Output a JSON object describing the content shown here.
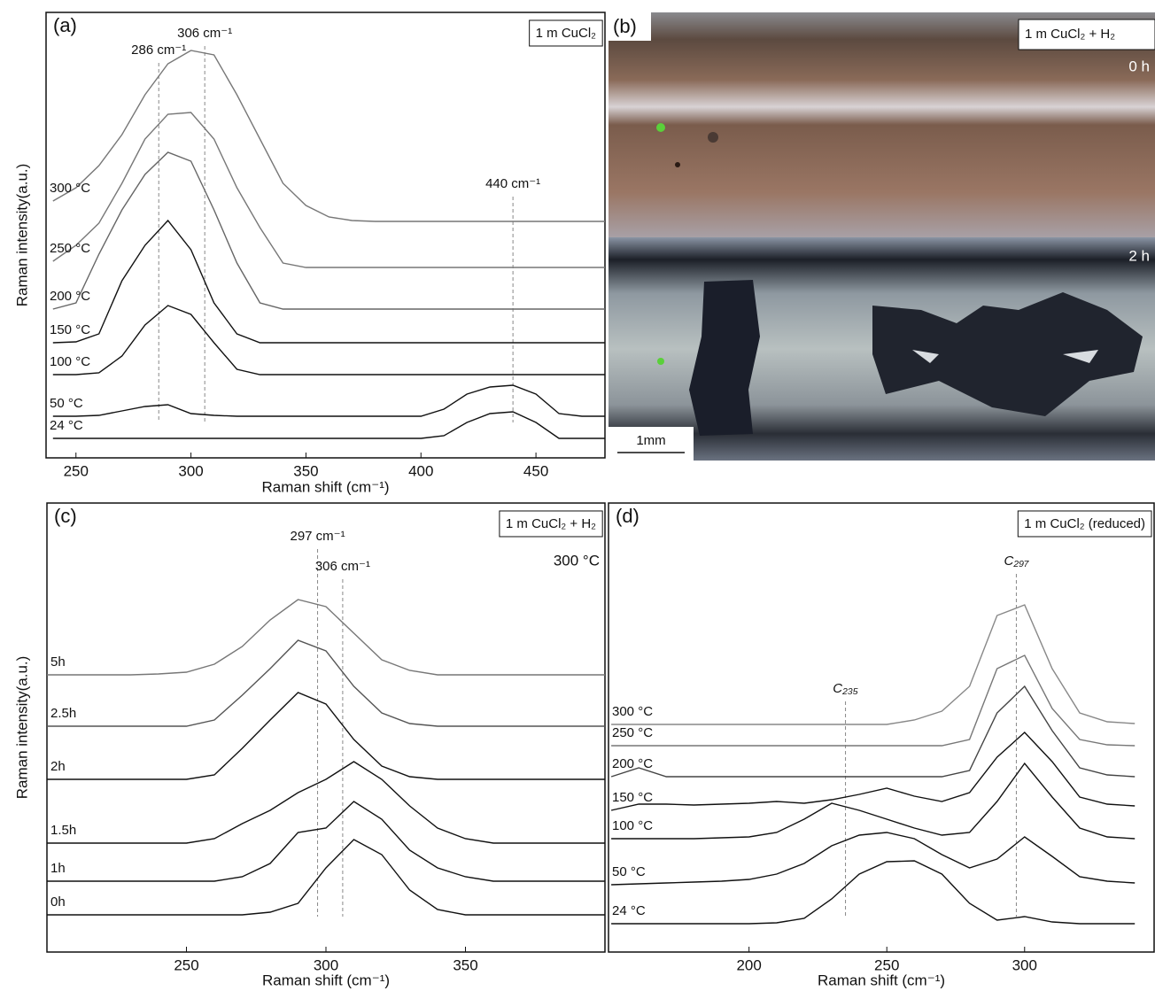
{
  "chart_data": [
    {
      "type": "line",
      "panel_label": "(a)",
      "title": "1 m CuCl₂",
      "xlabel": "Raman shift (cm⁻¹)",
      "ylabel": "Raman  intensity(a.u.)",
      "xlim": [
        237,
        480
      ],
      "xticks": [
        250,
        300,
        350,
        400,
        450
      ],
      "ylim": [
        0,
        503
      ],
      "x": [
        240,
        250,
        260,
        270,
        280,
        290,
        300,
        310,
        320,
        330,
        340,
        350,
        360,
        370,
        380,
        390,
        400,
        410,
        420,
        430,
        440,
        450,
        460,
        470,
        480
      ],
      "series": [
        {
          "name": "300 °C",
          "color": "#777777",
          "values": [
            290,
            305,
            330,
            365,
            410,
            445,
            460,
            455,
            410,
            360,
            310,
            285,
            272,
            268,
            267,
            267,
            267,
            267,
            267,
            267,
            267,
            267,
            267,
            267,
            267
          ]
        },
        {
          "name": "250 °C",
          "color": "#777777",
          "values": [
            222,
            240,
            265,
            310,
            360,
            388,
            390,
            360,
            305,
            260,
            220,
            215,
            215,
            215,
            215,
            215,
            215,
            215,
            215,
            215,
            215,
            215,
            215,
            215,
            215
          ]
        },
        {
          "name": "200 °C",
          "color": "#666666",
          "values": [
            168,
            175,
            230,
            280,
            320,
            345,
            335,
            280,
            220,
            175,
            168,
            168,
            168,
            168,
            168,
            168,
            168,
            168,
            168,
            168,
            168,
            168,
            168,
            168,
            168
          ]
        },
        {
          "name": "150 °C",
          "color": "#111111",
          "values": [
            130,
            131,
            140,
            200,
            240,
            268,
            235,
            175,
            140,
            130,
            130,
            130,
            130,
            130,
            130,
            130,
            130,
            130,
            130,
            130,
            130,
            130,
            130,
            130,
            130
          ]
        },
        {
          "name": "100 °C",
          "color": "#111111",
          "values": [
            94,
            94,
            96,
            115,
            150,
            172,
            162,
            130,
            100,
            94,
            94,
            94,
            94,
            94,
            94,
            94,
            94,
            94,
            94,
            94,
            94,
            94,
            94,
            94,
            94
          ]
        },
        {
          "name": "50 °C",
          "color": "#111111",
          "values": [
            47,
            47,
            48,
            53,
            58,
            60,
            50,
            48,
            47,
            47,
            47,
            47,
            47,
            47,
            47,
            47,
            47,
            55,
            72,
            80,
            82,
            72,
            50,
            47,
            47
          ]
        },
        {
          "name": "24 °C",
          "color": "#111111",
          "values": [
            22,
            22,
            22,
            22,
            22,
            22,
            22,
            22,
            22,
            22,
            22,
            22,
            22,
            22,
            22,
            22,
            22,
            25,
            40,
            50,
            52,
            40,
            22,
            22,
            22
          ]
        }
      ],
      "annotations": [
        {
          "text": "286 cm⁻¹",
          "x": 286
        },
        {
          "text": "306 cm⁻¹",
          "x": 306
        },
        {
          "text": "440 cm⁻¹",
          "x": 440
        }
      ]
    },
    {
      "type": "image",
      "panel_label": "(b)",
      "title": "1 m CuCl₂ + H₂",
      "frames": [
        "0 h",
        "2 h"
      ],
      "scale_bar": "1mm"
    },
    {
      "type": "line",
      "panel_label": "(c)",
      "title": "1 m CuCl₂ + H₂",
      "condition": "300 °C",
      "xlabel": "Raman shift (cm⁻¹)",
      "ylabel": "Raman  intensity(a.u.)",
      "xlim": [
        200,
        400
      ],
      "xticks": [
        250,
        300,
        350
      ],
      "ylim": [
        0,
        507
      ],
      "x": [
        200,
        210,
        220,
        230,
        240,
        250,
        260,
        270,
        280,
        290,
        300,
        310,
        320,
        330,
        340,
        350,
        360,
        370,
        380,
        390,
        400
      ],
      "series": [
        {
          "name": "5h",
          "color": "#777777",
          "values": [
            313,
            313,
            313,
            313,
            314,
            316,
            325,
            345,
            375,
            398,
            390,
            360,
            330,
            318,
            313,
            313,
            313,
            313,
            313,
            313,
            313
          ]
        },
        {
          "name": "2.5h",
          "color": "#555555",
          "values": [
            255,
            255,
            255,
            255,
            255,
            255,
            262,
            290,
            320,
            352,
            340,
            300,
            270,
            258,
            255,
            255,
            255,
            255,
            255,
            255,
            255
          ]
        },
        {
          "name": "2h",
          "color": "#111111",
          "values": [
            195,
            195,
            195,
            195,
            195,
            195,
            200,
            230,
            262,
            293,
            280,
            240,
            210,
            198,
            195,
            195,
            195,
            195,
            195,
            195,
            195
          ]
        },
        {
          "name": "1.5h",
          "color": "#111111",
          "values": [
            123,
            123,
            123,
            123,
            123,
            123,
            128,
            145,
            160,
            180,
            195,
            215,
            195,
            165,
            140,
            128,
            123,
            123,
            123,
            123,
            123
          ]
        },
        {
          "name": "1h",
          "color": "#111111",
          "values": [
            80,
            80,
            80,
            80,
            80,
            80,
            80,
            85,
            100,
            135,
            140,
            170,
            150,
            115,
            95,
            85,
            80,
            80,
            80,
            80,
            80
          ]
        },
        {
          "name": "0h",
          "color": "#111111",
          "values": [
            42,
            42,
            42,
            42,
            42,
            42,
            42,
            42,
            45,
            55,
            95,
            127,
            110,
            70,
            48,
            42,
            42,
            42,
            42,
            42,
            42
          ]
        }
      ],
      "annotations": [
        {
          "text": "297 cm⁻¹",
          "x": 297
        },
        {
          "text": "306 cm⁻¹",
          "x": 306
        }
      ]
    },
    {
      "type": "line",
      "title": "1 m CuCl₂ (reduced)",
      "panel_label": "(d)",
      "xlabel": "Raman shift (cm⁻¹)",
      "xlim": [
        149,
        347
      ],
      "xticks": [
        200,
        250,
        300
      ],
      "ylim": [
        0,
        507
      ],
      "x": [
        150,
        160,
        170,
        180,
        190,
        200,
        210,
        220,
        230,
        240,
        250,
        260,
        270,
        280,
        290,
        300,
        310,
        320,
        330,
        340
      ],
      "series": [
        {
          "name": "300 °C",
          "color": "#888888",
          "values": [
            257,
            257,
            257,
            257,
            257,
            257,
            257,
            257,
            257,
            257,
            257,
            262,
            272,
            300,
            380,
            392,
            320,
            270,
            260,
            258
          ]
        },
        {
          "name": "250 °C",
          "color": "#777777",
          "values": [
            233,
            233,
            233,
            233,
            233,
            233,
            233,
            233,
            233,
            233,
            233,
            233,
            233,
            240,
            320,
            335,
            275,
            240,
            234,
            233
          ]
        },
        {
          "name": "200 °C",
          "color": "#444444",
          "values": [
            198,
            208,
            198,
            198,
            198,
            198,
            198,
            198,
            198,
            198,
            198,
            198,
            198,
            205,
            270,
            300,
            250,
            208,
            200,
            198
          ]
        },
        {
          "name": "150 °C",
          "color": "#111111",
          "values": [
            160,
            167,
            167,
            166,
            167,
            168,
            170,
            168,
            172,
            178,
            185,
            176,
            170,
            180,
            220,
            248,
            215,
            175,
            167,
            165
          ]
        },
        {
          "name": "100 °C",
          "color": "#111111",
          "values": [
            128,
            128,
            128,
            128,
            129,
            130,
            135,
            150,
            168,
            160,
            150,
            140,
            132,
            135,
            170,
            213,
            175,
            140,
            130,
            128
          ]
        },
        {
          "name": "50 °C",
          "color": "#111111",
          "values": [
            76,
            77,
            78,
            79,
            80,
            82,
            88,
            100,
            120,
            132,
            135,
            128,
            110,
            95,
            105,
            130,
            108,
            85,
            80,
            78
          ]
        },
        {
          "name": "24 °C",
          "color": "#111111",
          "values": [
            32,
            32,
            32,
            32,
            32,
            32,
            33,
            38,
            60,
            88,
            102,
            103,
            88,
            55,
            36,
            40,
            34,
            32,
            32,
            32
          ]
        }
      ],
      "annotations": [
        {
          "text": "C₂₉₇",
          "x": 297
        },
        {
          "text": "C₂₃₅",
          "x": 235
        }
      ]
    }
  ]
}
